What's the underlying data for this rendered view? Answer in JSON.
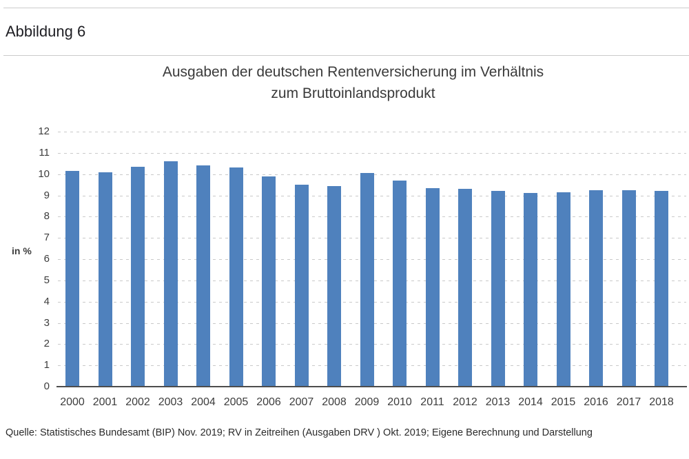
{
  "header": {
    "figure_label": "Abbildung 6"
  },
  "chart_data": {
    "type": "bar",
    "title": "Ausgaben der deutschen Rentenversicherung im Verhältnis zum Bruttoinlandsprodukt",
    "title_lines": [
      "Ausgaben der deutschen Rentenversicherung im Verhältnis",
      "zum Bruttoinlandsprodukt"
    ],
    "ylabel": "in %",
    "xlabel": "",
    "categories": [
      "2000",
      "2001",
      "2002",
      "2003",
      "2004",
      "2005",
      "2006",
      "2007",
      "2008",
      "2009",
      "2010",
      "2011",
      "2012",
      "2013",
      "2014",
      "2015",
      "2016",
      "2017",
      "2018"
    ],
    "values": [
      10.15,
      10.1,
      10.35,
      10.6,
      10.4,
      10.3,
      9.9,
      9.5,
      9.45,
      10.05,
      9.7,
      9.35,
      9.3,
      9.2,
      9.1,
      9.15,
      9.25,
      9.25,
      9.2
    ],
    "ylim": [
      0,
      12
    ],
    "ytick_step": 1,
    "grid": "horizontal-dashed",
    "legend": "none",
    "bar_color": "#4f81bd",
    "baseline_color": "#4d4d4d"
  },
  "source": {
    "text": "Quelle: Statistisches Bundesamt (BIP) Nov. 2019; RV in Zeitreihen (Ausgaben DRV ) Okt. 2019; Eigene Berechnung und Darstellung"
  }
}
